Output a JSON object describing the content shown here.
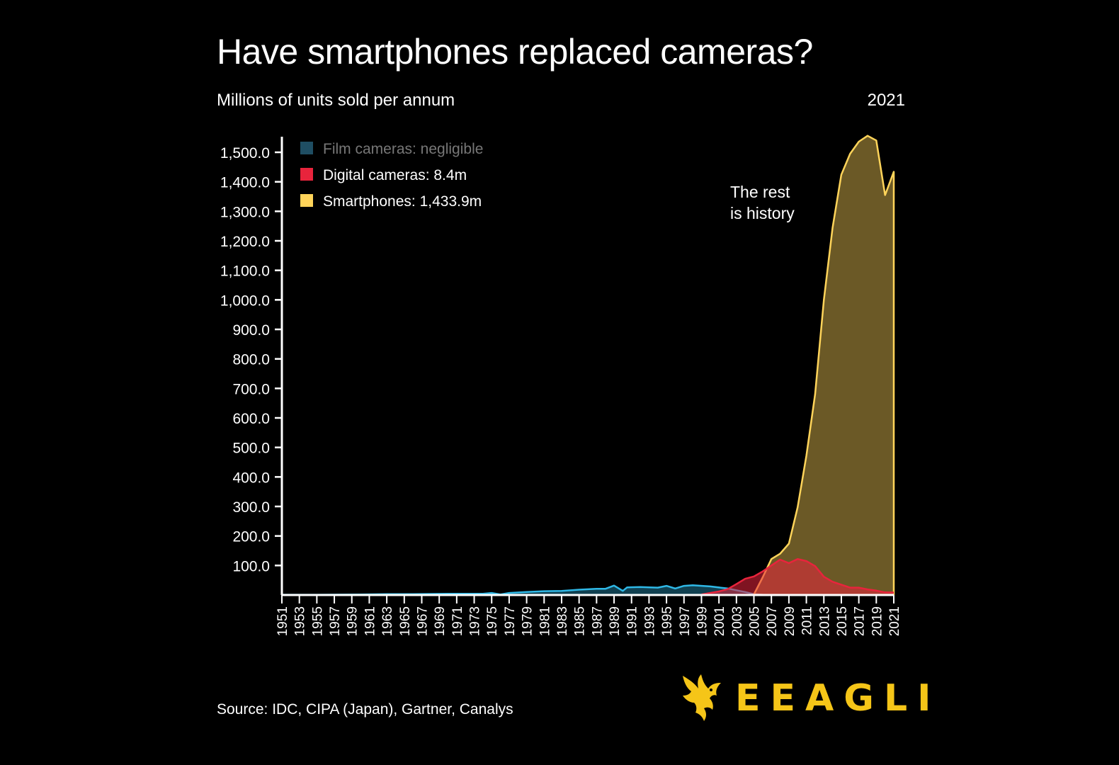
{
  "header": {
    "title": "Have smartphones replaced cameras?",
    "subtitle": "Millions of units sold per annum",
    "current_year": "2021"
  },
  "footer": {
    "source": "Source: IDC, CIPA (Japan), Gartner, Canalys",
    "brand": "EEAGLI"
  },
  "colors": {
    "film": "#2fb8e6",
    "film_legend": "#1f4e63",
    "digital": "#e8243c",
    "smartphones": "#ffd45a",
    "smart_fill": "#6b5a22",
    "brand": "#f5c518"
  },
  "chart_data": {
    "type": "area",
    "title": "Have smartphones replaced cameras?",
    "ylabel": "Millions of units sold per annum",
    "ylim": [
      0,
      1560
    ],
    "yticks": [
      "100.0",
      "200.0",
      "300.0",
      "400.0",
      "500.0",
      "600.0",
      "700.0",
      "800.0",
      "900.0",
      "1,000.0",
      "1,100.0",
      "1,200.0",
      "1,300.0",
      "1,400.0",
      "1,500.0"
    ],
    "ytick_values": [
      100,
      200,
      300,
      400,
      500,
      600,
      700,
      800,
      900,
      1000,
      1100,
      1200,
      1300,
      1400,
      1500
    ],
    "xticks": [
      "1951",
      "1953",
      "1955",
      "1957",
      "1959",
      "1961",
      "1963",
      "1965",
      "1967",
      "1969",
      "1971",
      "1973",
      "1975",
      "1977",
      "1979",
      "1981",
      "1983",
      "1985",
      "1987",
      "1989",
      "1991",
      "1993",
      "1995",
      "1997",
      "1999",
      "2001",
      "2003",
      "2005",
      "2007",
      "2009",
      "2011",
      "2013",
      "2015",
      "2017",
      "2019",
      "2021"
    ],
    "legend_placement": "top-left",
    "annotation": "The rest is history",
    "series": [
      {
        "name": "Film cameras: negligible",
        "key": "film",
        "points": [
          [
            1951,
            1
          ],
          [
            1955,
            1
          ],
          [
            1960,
            2
          ],
          [
            1963,
            3
          ],
          [
            1966,
            3
          ],
          [
            1970,
            4
          ],
          [
            1974,
            4
          ],
          [
            1975,
            7
          ],
          [
            1976,
            2
          ],
          [
            1977,
            7
          ],
          [
            1979,
            10
          ],
          [
            1981,
            13
          ],
          [
            1983,
            14
          ],
          [
            1985,
            18
          ],
          [
            1987,
            21
          ],
          [
            1988,
            21
          ],
          [
            1989,
            32
          ],
          [
            1990,
            14
          ],
          [
            1990.5,
            26
          ],
          [
            1992,
            27
          ],
          [
            1994,
            25
          ],
          [
            1995,
            31
          ],
          [
            1996,
            22
          ],
          [
            1997,
            31
          ],
          [
            1998,
            33
          ],
          [
            2000,
            29
          ],
          [
            2002,
            22
          ],
          [
            2004,
            10
          ],
          [
            2005,
            3
          ],
          [
            2006,
            1
          ]
        ]
      },
      {
        "name": "Digital cameras: 8.4m",
        "key": "digital",
        "points": [
          [
            1999,
            2
          ],
          [
            2001,
            12
          ],
          [
            2002,
            20
          ],
          [
            2003,
            37
          ],
          [
            2004,
            55
          ],
          [
            2005,
            63
          ],
          [
            2006,
            80
          ],
          [
            2007,
            100
          ],
          [
            2008,
            120
          ],
          [
            2009,
            108
          ],
          [
            2010,
            122
          ],
          [
            2011,
            115
          ],
          [
            2012,
            98
          ],
          [
            2013,
            62
          ],
          [
            2014,
            45
          ],
          [
            2015,
            35
          ],
          [
            2016,
            25
          ],
          [
            2017,
            25
          ],
          [
            2018,
            19
          ],
          [
            2019,
            15
          ],
          [
            2020,
            9
          ],
          [
            2021,
            8.4
          ]
        ]
      },
      {
        "name": "Smartphones: 1,433.9m",
        "key": "smartphones",
        "points": [
          [
            2005,
            2
          ],
          [
            2006,
            60
          ],
          [
            2007,
            122
          ],
          [
            2008,
            140
          ],
          [
            2009,
            174
          ],
          [
            2010,
            297
          ],
          [
            2011,
            472
          ],
          [
            2012,
            680
          ],
          [
            2013,
            1000
          ],
          [
            2014,
            1245
          ],
          [
            2015,
            1424
          ],
          [
            2016,
            1495
          ],
          [
            2017,
            1536
          ],
          [
            2018,
            1556
          ],
          [
            2019,
            1540
          ],
          [
            2020,
            1355
          ],
          [
            2021,
            1433.9
          ]
        ]
      }
    ]
  }
}
